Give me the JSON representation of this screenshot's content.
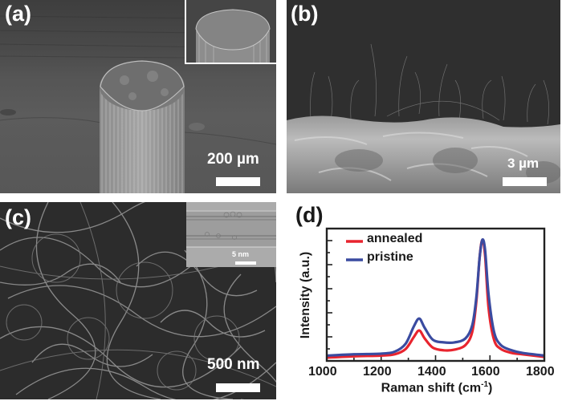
{
  "figure": {
    "panels": [
      {
        "id": "a",
        "label": "(a)",
        "type": "SEM image",
        "scale_bar": "200 µm",
        "inset": true
      },
      {
        "id": "b",
        "label": "(b)",
        "type": "SEM image",
        "scale_bar": "3 µm"
      },
      {
        "id": "c",
        "label": "(c)",
        "type": "SEM image",
        "scale_bar": "500 nm",
        "inset": true,
        "inset_scale_bar": "5 nm"
      },
      {
        "id": "d",
        "label": "(d)",
        "type": "Raman spectrum"
      }
    ]
  },
  "chart_data": {
    "type": "line",
    "title": "",
    "xlabel": "Raman shift (cm⁻¹)",
    "ylabel": "Intensity (a.u.)",
    "xlim": [
      1000,
      1800
    ],
    "ylim": [
      0,
      1
    ],
    "xticks": [
      1000,
      1200,
      1400,
      1600,
      1800
    ],
    "yticks_labeled": false,
    "grid": false,
    "legend_position": "upper left",
    "x": [
      1000,
      1100,
      1200,
      1250,
      1290,
      1320,
      1340,
      1360,
      1390,
      1430,
      1470,
      1510,
      1535,
      1550,
      1562,
      1572,
      1582,
      1595,
      1615,
      1640,
      1680,
      1720,
      1800
    ],
    "series": [
      {
        "name": "annealed",
        "color": "#e8242e",
        "values": [
          0.025,
          0.035,
          0.04,
          0.05,
          0.09,
          0.18,
          0.23,
          0.17,
          0.1,
          0.08,
          0.085,
          0.12,
          0.22,
          0.45,
          0.78,
          0.915,
          0.8,
          0.4,
          0.16,
          0.09,
          0.06,
          0.05,
          0.03
        ]
      },
      {
        "name": "pristine",
        "color": "#3a4ba0",
        "values": [
          0.04,
          0.05,
          0.055,
          0.07,
          0.13,
          0.26,
          0.32,
          0.25,
          0.16,
          0.14,
          0.14,
          0.17,
          0.27,
          0.48,
          0.78,
          0.915,
          0.84,
          0.5,
          0.22,
          0.12,
          0.08,
          0.06,
          0.04
        ]
      }
    ]
  },
  "panel_a": {
    "label": "(a)",
    "scale": "200 µm"
  },
  "panel_b": {
    "label": "(b)",
    "scale": "3 µm"
  },
  "panel_c": {
    "label": "(c)",
    "scale": "500 nm",
    "inset_scale": "5 nm"
  },
  "panel_d": {
    "label": "(d)",
    "ylabel": "Intensity (a.u.)",
    "xlabel_main": "Raman shift (cm",
    "xlabel_sup": "-1",
    "xlabel_end": ")",
    "ticks": [
      "1000",
      "1200",
      "1400",
      "1600",
      "1800"
    ],
    "legend": [
      {
        "name": "annealed",
        "color": "#e8242e"
      },
      {
        "name": "pristine",
        "color": "#3a4ba0"
      }
    ]
  }
}
